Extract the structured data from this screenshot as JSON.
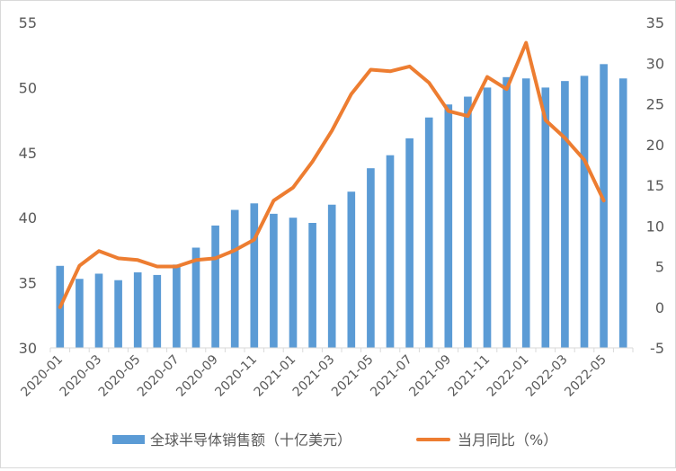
{
  "chart_data": {
    "type": "bar",
    "title": "",
    "colors": {
      "bars": "#5b9bd5",
      "line": "#ed7d31",
      "axis": "#d9d9d9",
      "text": "#595959"
    },
    "categories": [
      "2020-01",
      "2020-02",
      "2020-03",
      "2020-04",
      "2020-05",
      "2020-06",
      "2020-07",
      "2020-08",
      "2020-09",
      "2020-10",
      "2020-11",
      "2020-12",
      "2021-01",
      "2021-02",
      "2021-03",
      "2021-04",
      "2021-05",
      "2021-06",
      "2021-07",
      "2021-08",
      "2021-09",
      "2021-10",
      "2021-11",
      "2021-12",
      "2022-01",
      "2022-02",
      "2022-03",
      "2022-04",
      "2022-05",
      "2022-06"
    ],
    "x_tick_labels": [
      "2020-01",
      "2020-03",
      "2020-05",
      "2020-07",
      "2020-09",
      "2020-11",
      "2021-01",
      "2021-03",
      "2021-05",
      "2021-07",
      "2021-09",
      "2021-11",
      "2022-01",
      "2022-03",
      "2022-05"
    ],
    "series": [
      {
        "name": "全球半导体销售额（十亿美元）",
        "type": "bar",
        "axis": "left",
        "values": [
          36.3,
          35.3,
          35.7,
          35.2,
          35.8,
          35.6,
          36.4,
          37.7,
          39.4,
          40.6,
          41.1,
          40.3,
          40.0,
          39.6,
          41.0,
          42.0,
          43.8,
          44.8,
          46.1,
          47.7,
          48.7,
          49.3,
          50.0,
          50.8,
          50.7,
          50.0,
          50.5,
          50.9,
          51.8,
          50.7
        ]
      },
      {
        "name": "当月同比（%）",
        "type": "line",
        "axis": "right",
        "values": [
          0.0,
          5.1,
          6.9,
          6.0,
          5.8,
          5.0,
          5.0,
          5.8,
          6.0,
          7.0,
          8.3,
          13.1,
          14.7,
          17.9,
          21.7,
          26.2,
          29.2,
          29.0,
          29.6,
          27.6,
          24.1,
          23.5,
          28.3,
          26.8,
          32.5,
          23.0,
          20.8,
          18.1,
          13.1,
          null
        ]
      }
    ],
    "y_left": {
      "ylim": [
        30,
        55
      ],
      "ticks": [
        "30",
        "35",
        "40",
        "45",
        "50",
        "55"
      ]
    },
    "y_right": {
      "ylim": [
        -5,
        35
      ],
      "ticks": [
        "-5",
        "0",
        "5",
        "10",
        "15",
        "20",
        "25",
        "30",
        "35"
      ]
    },
    "grid": false,
    "legend": "bottom"
  }
}
